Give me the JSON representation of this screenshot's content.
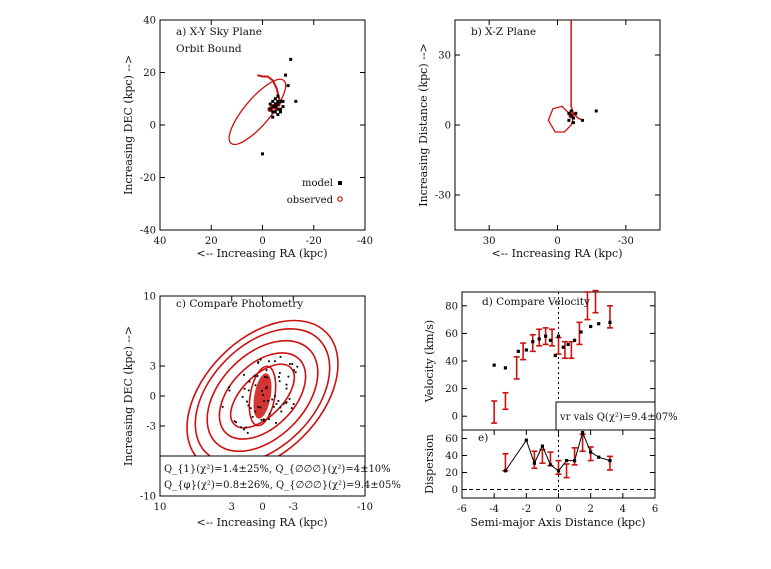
{
  "chart_data": [
    {
      "type": "scatter",
      "title": "a) X-Y Sky Plane",
      "subtitle": "Orbit Bound",
      "xlabel": "<-- Increasing RA (kpc)",
      "ylabel": "Increasing DEC (kpc) -->",
      "xlim": [
        40,
        -40
      ],
      "ylim": [
        -40,
        40
      ],
      "xticks": [
        40,
        20,
        0,
        -20,
        -40
      ],
      "yticks": [
        40,
        20,
        0,
        -20,
        -40
      ],
      "legend": [
        {
          "name": "model",
          "color": "#000000"
        },
        {
          "name": "observed",
          "color": "#cc1111"
        }
      ],
      "legend_position": "bottom-right",
      "orbit_arc": [
        [
          2,
          19
        ],
        [
          0,
          18.5
        ],
        [
          -2,
          18.5
        ],
        [
          -4,
          17
        ],
        [
          -5.5,
          14
        ],
        [
          -6.5,
          10
        ],
        [
          -7,
          8
        ]
      ],
      "orbit_ellipse": {
        "cx": 2,
        "cy": 5,
        "rx": 16,
        "ry": 5,
        "angle": -50
      },
      "model_points": [
        [
          -4,
          7
        ],
        [
          -5,
          8
        ],
        [
          -6,
          9
        ],
        [
          -7,
          6
        ],
        [
          -5,
          5
        ],
        [
          -3,
          6
        ],
        [
          -6,
          4
        ],
        [
          -8,
          7
        ],
        [
          -4,
          9
        ],
        [
          -5,
          10
        ],
        [
          -6,
          11
        ],
        [
          -7,
          9
        ],
        [
          -5,
          7
        ],
        [
          -6,
          8
        ],
        [
          -4,
          5
        ],
        [
          -3,
          8
        ],
        [
          -7,
          5
        ],
        [
          -6,
          6
        ],
        [
          -8,
          9
        ],
        [
          -4,
          3
        ],
        [
          -10,
          15
        ],
        [
          -11,
          25
        ],
        [
          -9,
          19
        ],
        [
          0,
          -11
        ],
        [
          -13,
          9
        ]
      ],
      "observed_points": [
        [
          -3,
          6
        ],
        [
          -4,
          7
        ],
        [
          -5,
          7
        ],
        [
          -6,
          8
        ]
      ]
    },
    {
      "type": "line",
      "title": "b) X-Z Plane",
      "xlabel": "<-- Increasing RA (kpc)",
      "ylabel": "Increasing Distance (kpc) -->",
      "xlim": [
        45,
        -45
      ],
      "ylim": [
        -45,
        45
      ],
      "xticks": [
        30,
        0,
        -30
      ],
      "yticks": [
        30,
        0,
        -30
      ],
      "orbit_path": [
        [
          -6,
          45
        ],
        [
          -6,
          40
        ],
        [
          -6,
          30
        ],
        [
          -6,
          20
        ],
        [
          -6,
          12
        ],
        [
          -6,
          8
        ],
        [
          -7,
          5
        ],
        [
          -9,
          3
        ],
        [
          -11,
          2
        ]
      ],
      "orbit_loop": [
        [
          -5,
          5
        ],
        [
          -2,
          8
        ],
        [
          2,
          7
        ],
        [
          4,
          2
        ],
        [
          1,
          -3
        ],
        [
          -3,
          -3
        ],
        [
          -6,
          0
        ],
        [
          -7,
          3
        ],
        [
          -6,
          5
        ]
      ],
      "model_points": [
        [
          -6,
          4
        ],
        [
          -7,
          3
        ],
        [
          -5,
          2
        ],
        [
          -8,
          5
        ],
        [
          -6,
          6
        ],
        [
          -7,
          1
        ],
        [
          -5,
          5
        ],
        [
          -17,
          6
        ],
        [
          -11,
          2
        ]
      ],
      "observed_points": [
        [
          -6,
          4
        ]
      ]
    },
    {
      "type": "scatter",
      "title": "c) Compare Photometry",
      "xlabel": "<-- Increasing RA (kpc)",
      "ylabel": "Increasing DEC (kpc) -->",
      "xlim": [
        10,
        -10
      ],
      "ylim": [
        -10,
        10
      ],
      "xticks": [
        10,
        3,
        0,
        -3,
        -10
      ],
      "yticks": [
        10,
        3,
        0,
        -3,
        -10
      ],
      "contours": [
        {
          "rx": 1.2,
          "ry": 3.0,
          "angle": 10
        },
        {
          "rx": 2.0,
          "ry": 4.0,
          "angle": 45
        },
        {
          "rx": 3.1,
          "ry": 5.2,
          "angle": 45
        },
        {
          "rx": 4.1,
          "ry": 6.6,
          "angle": 45
        },
        {
          "rx": 5.0,
          "ry": 8.0,
          "angle": 45
        },
        {
          "rx": 5.6,
          "ry": 9.0,
          "angle": 45
        }
      ],
      "stats": [
        "Q_{1}(χ²)=1.4±25%, Q_{∅∅∅}(χ²)=4±10%",
        "Q_{φ}(χ²)=0.8±26%, Q_{∅∅∅}(χ²)=9.4±05%"
      ]
    },
    {
      "type": "scatter",
      "title": "d) Compare Velocity",
      "ylabel": "Velocity (km/s)",
      "xlim": [
        -6,
        6
      ],
      "ylim": [
        -10,
        90
      ],
      "yticks": [
        0,
        20,
        40,
        60,
        80
      ],
      "annotation": "vr vals Q(χ²)=9.4±07%",
      "model_points": [
        [
          -4,
          37
        ],
        [
          -3.3,
          35
        ],
        [
          -2.5,
          47
        ],
        [
          -2,
          48
        ],
        [
          -1.6,
          54
        ],
        [
          -1.2,
          56
        ],
        [
          -0.8,
          58
        ],
        [
          -0.5,
          55
        ],
        [
          0,
          58
        ],
        [
          0.3,
          50
        ],
        [
          0.6,
          52
        ],
        [
          1,
          55
        ],
        [
          1.4,
          61
        ],
        [
          2,
          65
        ],
        [
          2.5,
          67
        ],
        [
          3.2,
          68
        ],
        [
          -0.2,
          44
        ]
      ],
      "observed_errors": [
        [
          -4,
          3,
          8
        ],
        [
          -3.3,
          11,
          6
        ],
        [
          -2.6,
          35,
          8
        ],
        [
          -2.2,
          47,
          6
        ],
        [
          -1.6,
          53,
          6
        ],
        [
          -1.2,
          57,
          6
        ],
        [
          -0.8,
          58,
          6
        ],
        [
          -0.4,
          57,
          6
        ],
        [
          0,
          51,
          6
        ],
        [
          0.4,
          48,
          6
        ],
        [
          0.8,
          48,
          6
        ],
        [
          1.3,
          60,
          8
        ],
        [
          1.8,
          80,
          10
        ],
        [
          2.3,
          83,
          8
        ],
        [
          3.2,
          72,
          8
        ]
      ]
    },
    {
      "type": "line",
      "title": "e)",
      "xlabel": "Semi-major Axis Distance (kpc)",
      "ylabel": "Dispersion",
      "xlim": [
        -6,
        6
      ],
      "ylim": [
        -10,
        70
      ],
      "xticks": [
        -6,
        -4,
        -2,
        0,
        2,
        4,
        6
      ],
      "yticks": [
        0,
        20,
        40,
        60
      ],
      "model_line": [
        [
          -3.3,
          22
        ],
        [
          -2,
          58
        ],
        [
          -1.5,
          31
        ],
        [
          -1,
          51
        ],
        [
          -0.5,
          29
        ],
        [
          0,
          22
        ],
        [
          0.5,
          34
        ],
        [
          1,
          34
        ],
        [
          1.5,
          67
        ],
        [
          2,
          44
        ],
        [
          2.5,
          38
        ],
        [
          3.2,
          34
        ]
      ],
      "observed_errors": [
        [
          -3.3,
          32,
          10
        ],
        [
          -1.5,
          35,
          10
        ],
        [
          -1,
          39,
          8
        ],
        [
          -0.5,
          36,
          8
        ],
        [
          0,
          26,
          8
        ],
        [
          0.5,
          22,
          8
        ],
        [
          1,
          39,
          10
        ],
        [
          1.5,
          55,
          10
        ],
        [
          2,
          42,
          8
        ],
        [
          3.2,
          31,
          8
        ]
      ]
    }
  ]
}
